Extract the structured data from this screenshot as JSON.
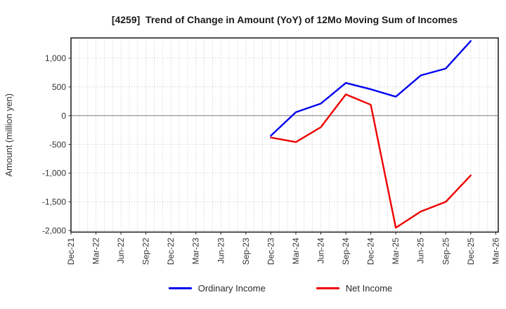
{
  "chart_data": {
    "type": "line",
    "title": "[4259]  Trend of Change in Amount (YoY) of 12Mo Moving Sum of Incomes",
    "ylabel": "Amount (million yen)",
    "xlabel": "",
    "x_tick_labels": [
      "Dec-21",
      "Mar-22",
      "Jun-22",
      "Sep-22",
      "Dec-22",
      "Mar-23",
      "Jun-23",
      "Sep-23",
      "Dec-23",
      "Mar-24",
      "Jun-24",
      "Sep-24",
      "Dec-24",
      "Mar-25",
      "Jun-25",
      "Sep-25",
      "Dec-25",
      "Mar-26"
    ],
    "months_per_tick": 3,
    "total_months": 51,
    "ytick_values": [
      1000,
      500,
      0,
      -500,
      -1000,
      -1500,
      -2000
    ],
    "ytick_labels": [
      "1,000",
      "500",
      "0",
      "-500",
      "-1,000",
      "-1,500",
      "-2,000"
    ],
    "ylim": [
      -2020,
      1355
    ],
    "grid": "dotted",
    "zero_line": "solid",
    "legend_position": "bottom-center",
    "colors": {
      "grid": "#b3b3b3",
      "zero_line": "#8a8a8a",
      "border": "#262626",
      "tick_text": "#333333"
    },
    "series": [
      {
        "name": "Ordinary Income",
        "color": "#0000ee",
        "x": [
          "Dec-23",
          "Mar-24",
          "Jun-24",
          "Sep-24",
          "Dec-24",
          "Mar-25",
          "Jun-25",
          "Sep-25",
          "Dec-25"
        ],
        "month_offsets": [
          24,
          27,
          30,
          33,
          36,
          39,
          42,
          45,
          48
        ],
        "values": [
          -350,
          60,
          210,
          570,
          460,
          330,
          700,
          820,
          1300
        ]
      },
      {
        "name": "Net Income",
        "color": "#ee0000",
        "x": [
          "Dec-23",
          "Mar-24",
          "Jun-24",
          "Sep-24",
          "Dec-24",
          "Mar-25",
          "Jun-25",
          "Sep-25",
          "Dec-25"
        ],
        "month_offsets": [
          24,
          27,
          30,
          33,
          36,
          39,
          42,
          45,
          48
        ],
        "values": [
          -380,
          -460,
          -200,
          370,
          190,
          -1950,
          -1670,
          -1500,
          -1040
        ]
      }
    ]
  }
}
